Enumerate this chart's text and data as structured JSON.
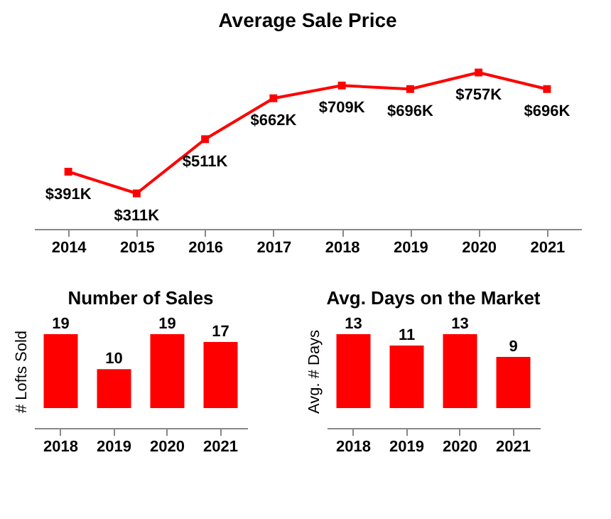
{
  "chart_data": [
    {
      "type": "line",
      "title": "Average Sale Price",
      "categories": [
        "2014",
        "2015",
        "2016",
        "2017",
        "2018",
        "2019",
        "2020",
        "2021"
      ],
      "values": [
        391,
        311,
        511,
        662,
        709,
        696,
        757,
        696
      ],
      "value_labels": [
        "$391K",
        "$311K",
        "$511K",
        "$662K",
        "$709K",
        "$696K",
        "$757K",
        "$696K"
      ],
      "color": "#ff0000",
      "marker": "square",
      "tick_labels": "x"
    },
    {
      "type": "bar",
      "title": "Number of Sales",
      "ylabel": "# Lofts Sold",
      "categories": [
        "2018",
        "2019",
        "2020",
        "2021"
      ],
      "values": [
        19,
        10,
        19,
        17
      ],
      "color": "#ff0000",
      "data_labels": true,
      "tick_labels": "x"
    },
    {
      "type": "bar",
      "title": "Avg. Days on the Market",
      "ylabel": "Avg. # Days",
      "categories": [
        "2018",
        "2019",
        "2020",
        "2021"
      ],
      "values": [
        13,
        11,
        13,
        9
      ],
      "color": "#ff0000",
      "data_labels": true,
      "tick_labels": "x"
    }
  ]
}
